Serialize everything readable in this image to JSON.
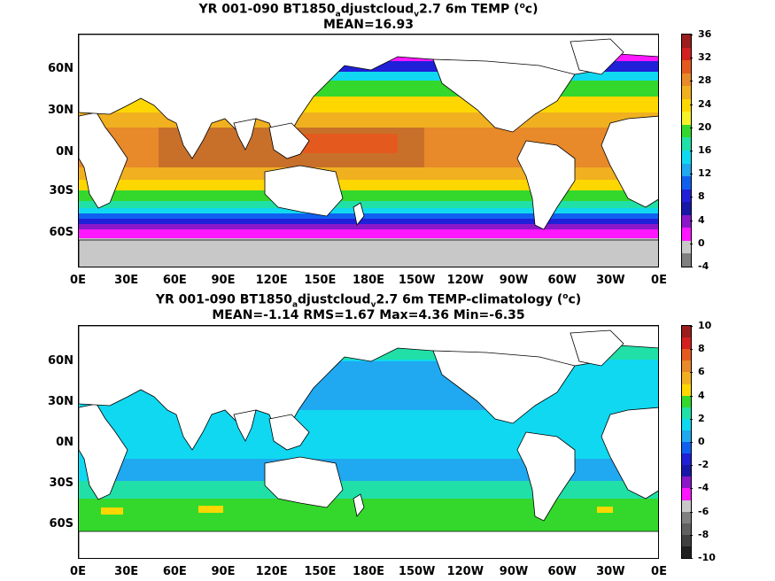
{
  "panels": [
    {
      "id": "top",
      "title_line1": "YR 001-090 BT1850",
      "title_sub1": "a",
      "title_mid": "djustcloud",
      "title_sub2": "v",
      "title_end": "2.7 6m TEMP (",
      "title_sup": "o",
      "title_close": "c)",
      "stats": "MEAN=16.93",
      "colorbar_labels": [
        "36",
        "32",
        "28",
        "24",
        "20",
        "16",
        "12",
        "8",
        "4",
        "0",
        "-4"
      ],
      "colorbar_colors": [
        "#9b1d1d",
        "#d42020",
        "#e45a1e",
        "#e8892a",
        "#f0b020",
        "#ffd700",
        "#f5f22a",
        "#34d82c",
        "#20e0a8",
        "#10d8f0",
        "#20a8f0",
        "#1060f0",
        "#2020d8",
        "#1818a8",
        "#8a18c8",
        "#ff18ff",
        "#c8c8c8",
        "#808080"
      ]
    },
    {
      "id": "bottom",
      "title_line1": "YR 001-090 BT1850",
      "title_sub1": "a",
      "title_mid": "djustcloud",
      "title_sub2": "v",
      "title_end": "2.7 6m TEMP-climatology (",
      "title_sup": "o",
      "title_close": "c)",
      "stats": "MEAN=-1.14   RMS=1.67   Max=4.36   Min=-6.35",
      "colorbar_labels": [
        "10",
        "8",
        "6",
        "4",
        "2",
        "0",
        "-2",
        "-4",
        "-6",
        "-8",
        "-10"
      ],
      "colorbar_colors": [
        "#9b1d1d",
        "#d42020",
        "#e45a1e",
        "#e8892a",
        "#f0b020",
        "#ffd700",
        "#34d82c",
        "#20e0a8",
        "#10d8f0",
        "#20a8f0",
        "#1060f0",
        "#2020d8",
        "#1818a8",
        "#8a18c8",
        "#ff18ff",
        "#c8c8c8",
        "#808080",
        "#606060",
        "#404040",
        "#202020"
      ]
    }
  ],
  "lat_labels": [
    "60N",
    "30N",
    "0N",
    "30S",
    "60S"
  ],
  "lon_labels": [
    "0E",
    "30E",
    "60E",
    "90E",
    "120E",
    "150E",
    "180E",
    "150W",
    "120W",
    "90W",
    "60W",
    "30W",
    "0E"
  ]
}
